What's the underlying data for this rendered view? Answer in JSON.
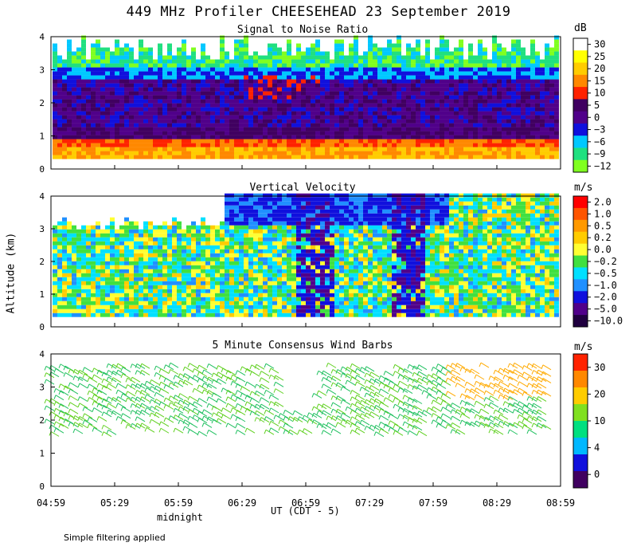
{
  "title": "449 MHz Profiler CHEESEHEAD 23 September 2019",
  "ylabel": "Altitude (km)",
  "xlabel": "UT  (CDT - 5)",
  "midnight_label": "midnight",
  "footnote": "Simple filtering applied",
  "x_ticks": [
    "04:59",
    "05:29",
    "05:59",
    "06:29",
    "06:59",
    "07:29",
    "07:59",
    "08:29",
    "08:59"
  ],
  "chart_data": [
    {
      "type": "heatmap",
      "title": "Signal to Noise Ratio",
      "unit": "dB",
      "ylim": [
        0,
        4
      ],
      "y_ticks": [
        "0",
        "1",
        "2",
        "3",
        "4"
      ],
      "colorbar_ticks": [
        "30",
        "25",
        "20",
        "15",
        "10",
        "5",
        "0",
        "−3",
        "−6",
        "−9",
        "−12"
      ],
      "colorbar_colors": [
        "#ffffff",
        "#ffff00",
        "#ffcc00",
        "#ff8800",
        "#ff2200",
        "#400060",
        "#50008a",
        "#1010dd",
        "#00c8ff",
        "#20e080",
        "#80ff20"
      ]
    },
    {
      "type": "heatmap",
      "title": "Vertical Velocity",
      "unit": "m/s",
      "ylim": [
        0,
        4
      ],
      "y_ticks": [
        "0",
        "1",
        "2",
        "3",
        "4"
      ],
      "colorbar_ticks": [
        "2.0",
        "1.0",
        "0.5",
        "0.2",
        "0.0",
        "−0.2",
        "−0.5",
        "−1.0",
        "−2.0",
        "−5.0",
        "−10.0"
      ],
      "colorbar_colors": [
        "#ff0000",
        "#ff5500",
        "#ff9900",
        "#ffcc00",
        "#ffff33",
        "#40e040",
        "#00e0ff",
        "#2090ff",
        "#1010dd",
        "#50008a",
        "#200040"
      ]
    },
    {
      "type": "scatter",
      "title": "5 Minute Consensus Wind Barbs",
      "unit": "m/s",
      "ylim": [
        0,
        4
      ],
      "y_ticks": [
        "0",
        "1",
        "2",
        "3",
        "4"
      ],
      "colorbar_ticks": [
        "30",
        "20",
        "10",
        "4",
        "0"
      ],
      "colorbar_colors": [
        "#ff2200",
        "#ff8800",
        "#ffcc00",
        "#80e020",
        "#00e080",
        "#00b8ff",
        "#1010dd",
        "#400060"
      ]
    }
  ]
}
